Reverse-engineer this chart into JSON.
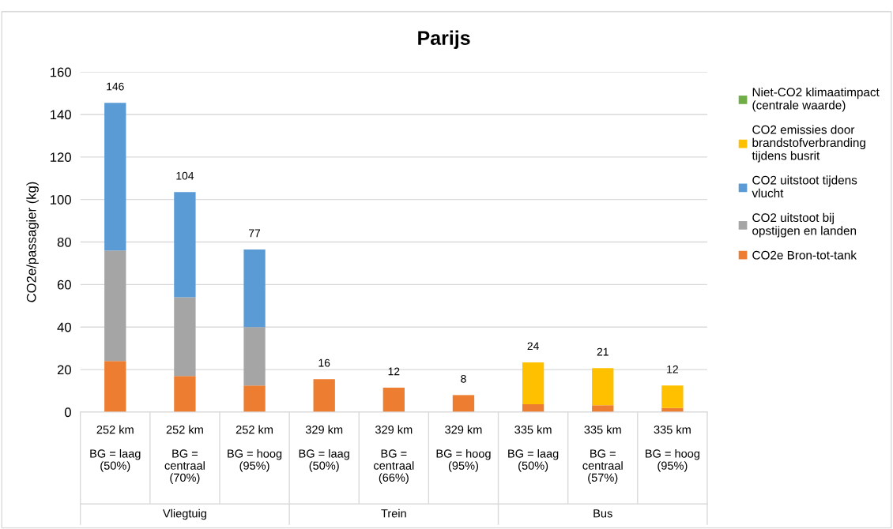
{
  "chart_data": {
    "type": "bar",
    "stacked": true,
    "title": "Parijs",
    "ylabel": "CO2e/passagier (kg)",
    "categories": [
      "252 km\n\nBG = laag\n(50%)",
      "252 km\n\nBG =\ncentraal\n(70%)",
      "252 km\n\nBG = hoog\n(95%)",
      "329 km\n\nBG = laag\n(50%)",
      "329 km\n\nBG =\ncentraal\n(66%)",
      "329 km\n\nBG = hoog\n(95%)",
      "335 km\n\nBG = laag\n(50%)",
      "335 km\n\nBG =\ncentraal\n(57%)",
      "335 km\n\nBG = hoog\n(95%)"
    ],
    "series": [
      {
        "name": "CO2e Bron-tot-tank",
        "color": "#ed7d31",
        "values": [
          24,
          17,
          12.5,
          15.5,
          11.5,
          8,
          3.7,
          3.2,
          1.9
        ]
      },
      {
        "name": "CO2 uitstoot bij opstijgen en landen",
        "color": "#a5a5a5",
        "values": [
          52,
          37,
          27.5,
          null,
          null,
          null,
          null,
          null,
          null
        ]
      },
      {
        "name": "CO2 uitstoot tijdens vlucht",
        "color": "#5b9bd5",
        "values": [
          69.5,
          49.5,
          36.5,
          null,
          null,
          null,
          null,
          null,
          null
        ]
      },
      {
        "name": "CO2 emissies door brandstofverbranding tijdens busrit",
        "color": "#ffc000",
        "values": [
          null,
          null,
          null,
          null,
          null,
          null,
          19.7,
          17.5,
          10.6
        ]
      },
      {
        "name": "Niet-CO2 klimaatimpact (centrale waarde)",
        "color": "#70ad47",
        "values": [
          null,
          null,
          null,
          null,
          null,
          null,
          null,
          null,
          null
        ]
      }
    ],
    "totals": [
      "146",
      "104",
      "77",
      "16",
      "12",
      "8",
      "24",
      "21",
      "12"
    ],
    "annotations": [
      "Vliegtuig",
      "Trein",
      "Bus"
    ],
    "ylim": [
      0,
      160
    ],
    "yticks": [
      0,
      20,
      40,
      60,
      80,
      100,
      120,
      140,
      160
    ],
    "grid": "y",
    "legend": "right"
  }
}
